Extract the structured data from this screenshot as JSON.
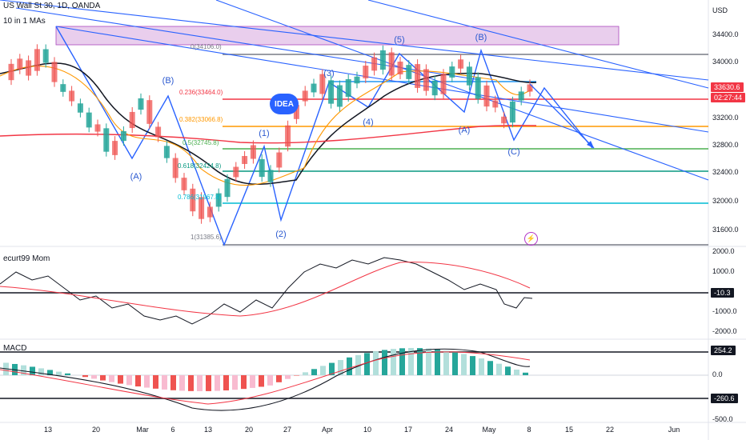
{
  "header": {
    "symbol_line": "US Wall St 30, 1D, OANDA",
    "ma_label": "10 in 1 MAs"
  },
  "currency": "USD",
  "price_axis": [
    "34400.0",
    "34000.0",
    "33600.0",
    "33200.0",
    "32800.0",
    "32400.0",
    "32000.0",
    "31600.0"
  ],
  "price_tag": {
    "value": "33630.6",
    "timer": "02:27:44"
  },
  "fib_levels": {
    "f0": "0(34106.0)",
    "f236": "0.236(33464.0)",
    "f382": "0.382(33066.8)",
    "f5": "0.5(32745.8)",
    "f618": "0.618(32424.8)",
    "f786": "0.786(31967.8)",
    "f1": "1(31385.6)"
  },
  "wave_labels": {
    "a1": "(A)",
    "b1": "(B)",
    "w1": "(1)",
    "w2": "(2)",
    "w3": "(3)",
    "w4": "(4)",
    "w5": "(5)",
    "a2": "(A)",
    "b2": "(B)",
    "c2": "(C)"
  },
  "idea_badge": "IDEA",
  "momentum": {
    "title": "ecurt99 Mom",
    "axis": [
      "2000.0",
      "1000.0",
      "0.0",
      "-1000.0",
      "-2000.0"
    ],
    "tag": "-10.3"
  },
  "macd": {
    "title": "MACD",
    "axis": [
      "0.0",
      "-500.0"
    ],
    "upper_tag": "254.2",
    "lower_tag": "-260.6"
  },
  "time_axis": [
    "13",
    "20",
    "Mar",
    "6",
    "13",
    "20",
    "27",
    "Apr",
    "10",
    "17",
    "24",
    "May",
    "8",
    "15",
    "22",
    "Jun"
  ],
  "colors": {
    "bull": "#26a69a",
    "bear": "#ef5350",
    "fib_red": "#f23645",
    "fib_orange": "#ff9800",
    "fib_green": "#4caf50",
    "fib_teal": "#089981",
    "fib_cyan": "#00bcd4",
    "channel": "#2962ff",
    "zone": "#ce93d8"
  }
}
